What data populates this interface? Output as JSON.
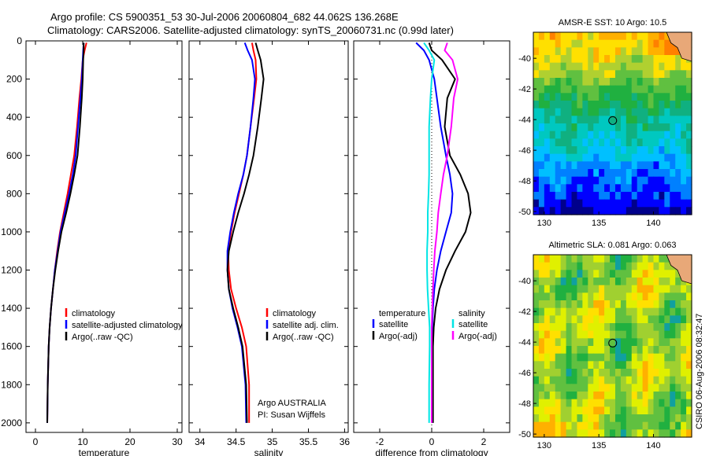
{
  "title": {
    "line1": "Argo profile: CS 5900351_53 30-Jul-2006 20060804_682 44.062S 136.268E",
    "line2": "Climatology: CARS2006. Satellite-adjusted climatology: synTS_20060731.nc (0.99d later)"
  },
  "credit": {
    "line1": "Argo AUSTRALIA",
    "line2": "PI: Susan Wijffels",
    "timestamp": "CSIRO 06-Aug-2006 08:32:47"
  },
  "colors": {
    "climatology": "#ff0000",
    "satellite": "#0000ff",
    "argo": "#000000",
    "salinity_diff": "#ff00ff",
    "salinity_sat": "#00e5e5"
  },
  "chart_data": [
    {
      "type": "line",
      "xlabel": "temperature",
      "ylabel": "",
      "xlim": [
        -2,
        31
      ],
      "ylim": [
        2050,
        0
      ],
      "xticks": [
        0,
        10,
        20,
        30
      ],
      "yticks": [
        0,
        200,
        400,
        600,
        800,
        1000,
        1200,
        1400,
        1600,
        1800,
        2000
      ],
      "legend": {
        "position": "right",
        "entries": [
          "climatology",
          "satellite-adjusted climatology",
          "Argo(..raw -QC)"
        ]
      },
      "series": [
        {
          "name": "climatology",
          "color": "#ff0000",
          "x": [
            10.8,
            10.4,
            10.0,
            9.7,
            9.3,
            8.8,
            8.2,
            7.5,
            6.8,
            6.0,
            5.2,
            4.6,
            4.1,
            3.7,
            3.3,
            3.0,
            2.8,
            2.6,
            2.5
          ],
          "y": [
            10,
            50,
            100,
            200,
            300,
            450,
            600,
            700,
            800,
            900,
            1000,
            1100,
            1200,
            1300,
            1400,
            1500,
            1600,
            1800,
            2000
          ]
        },
        {
          "name": "satellite-adjusted climatology",
          "color": "#0000ff",
          "x": [
            10.2,
            10.1,
            10.0,
            9.8,
            9.5,
            9.0,
            8.5,
            7.9,
            7.1,
            6.2,
            5.3,
            4.7,
            4.1,
            3.7,
            3.3,
            3.0,
            2.8,
            2.6,
            2.5
          ],
          "y": [
            10,
            50,
            100,
            200,
            300,
            450,
            600,
            700,
            800,
            900,
            1000,
            1100,
            1200,
            1300,
            1400,
            1500,
            1600,
            1800,
            2000
          ]
        },
        {
          "name": "Argo(..raw -QC)",
          "color": "#000000",
          "x": [
            10.2,
            10.2,
            10.1,
            10.0,
            9.8,
            9.4,
            8.9,
            8.2,
            7.4,
            6.5,
            5.5,
            4.8,
            4.2,
            3.7,
            3.3,
            3.0,
            2.8,
            2.6,
            2.5
          ],
          "y": [
            10,
            50,
            100,
            200,
            300,
            450,
            600,
            700,
            800,
            900,
            1000,
            1100,
            1200,
            1300,
            1400,
            1500,
            1600,
            1800,
            2000
          ]
        }
      ]
    },
    {
      "type": "line",
      "xlabel": "salinity",
      "ylabel": "",
      "xlim": [
        33.85,
        36.05
      ],
      "ylim": [
        2050,
        0
      ],
      "xticks": [
        34,
        34.5,
        35,
        35.5,
        36
      ],
      "yticks": [
        0,
        200,
        400,
        600,
        800,
        1000,
        1200,
        1400,
        1600,
        1800,
        2000
      ],
      "legend": {
        "position": "right",
        "entries": [
          "climatology",
          "satellite adj. clim.",
          "Argo(..raw -QC)"
        ]
      },
      "series": [
        {
          "name": "climatology",
          "color": "#ff0000",
          "x": [
            34.72,
            34.74,
            34.77,
            34.78,
            34.75,
            34.7,
            34.65,
            34.6,
            34.54,
            34.48,
            34.43,
            34.39,
            34.4,
            34.43,
            34.5,
            34.58,
            34.64,
            34.68,
            34.68
          ],
          "y": [
            10,
            50,
            100,
            200,
            300,
            450,
            600,
            700,
            800,
            900,
            1000,
            1100,
            1200,
            1300,
            1400,
            1500,
            1600,
            1800,
            2000
          ]
        },
        {
          "name": "satellite adj. clim.",
          "color": "#0000ff",
          "x": [
            34.62,
            34.66,
            34.72,
            34.76,
            34.74,
            34.7,
            34.65,
            34.6,
            34.53,
            34.47,
            34.42,
            34.38,
            34.38,
            34.4,
            34.45,
            34.52,
            34.58,
            34.63,
            34.64
          ],
          "y": [
            10,
            50,
            100,
            200,
            300,
            450,
            600,
            700,
            800,
            900,
            1000,
            1100,
            1200,
            1300,
            1400,
            1500,
            1600,
            1800,
            2000
          ]
        },
        {
          "name": "Argo(..raw -QC)",
          "color": "#000000",
          "x": [
            34.77,
            34.8,
            34.84,
            34.88,
            34.85,
            34.8,
            34.74,
            34.68,
            34.61,
            34.53,
            34.46,
            34.4,
            34.38,
            34.4,
            34.46,
            34.53,
            34.59,
            34.64,
            34.65
          ],
          "y": [
            10,
            50,
            100,
            200,
            300,
            450,
            600,
            700,
            800,
            900,
            1000,
            1100,
            1200,
            1300,
            1400,
            1500,
            1600,
            1800,
            2000
          ]
        }
      ]
    },
    {
      "type": "line",
      "xlabel": "difference from climatology",
      "ylabel": "",
      "xlim": [
        -3.0,
        3.0
      ],
      "ylim": [
        2050,
        0
      ],
      "xticks": [
        -2,
        0,
        2
      ],
      "yticks": [
        0,
        200,
        400,
        600,
        800,
        1000,
        1200,
        1400,
        1600,
        1800,
        2000
      ],
      "legend": {
        "position": "right",
        "temperature_title": "temperature",
        "salinity_title": "salinity",
        "entries": [
          "satellite",
          "Argo(-adj)",
          "satellite",
          "Argo(-adj)"
        ]
      },
      "series": [
        {
          "name": "satellite",
          "group": "temperature",
          "color": "#0000ff",
          "x": [
            -0.6,
            -0.3,
            -0.1,
            0.1,
            0.2,
            0.35,
            0.55,
            0.7,
            0.8,
            0.75,
            0.55,
            0.35,
            0.2,
            0.1,
            0.05,
            0.02,
            0.02,
            0.02,
            0.02
          ],
          "y": [
            10,
            50,
            100,
            200,
            300,
            450,
            600,
            700,
            800,
            900,
            1000,
            1100,
            1200,
            1300,
            1400,
            1500,
            1600,
            1800,
            2000
          ]
        },
        {
          "name": "Argo(-adj)",
          "group": "temperature",
          "color": "#000000",
          "x": [
            -0.1,
            0.0,
            0.4,
            0.9,
            0.6,
            0.5,
            0.7,
            1.1,
            1.4,
            1.5,
            1.3,
            0.9,
            0.55,
            0.3,
            0.15,
            0.08,
            0.05,
            0.05,
            0.05
          ],
          "y": [
            10,
            50,
            100,
            200,
            300,
            450,
            600,
            700,
            800,
            900,
            1000,
            1100,
            1200,
            1300,
            1400,
            1500,
            1600,
            1800,
            2000
          ]
        },
        {
          "name": "satellite",
          "group": "salinity",
          "color": "#00e5e5",
          "x": [
            -0.3,
            -0.1,
            0.1,
            0.0,
            -0.05,
            -0.1,
            -0.1,
            -0.1,
            -0.12,
            -0.15,
            -0.15,
            -0.18,
            -0.18,
            -0.16,
            -0.12,
            -0.08,
            -0.08,
            -0.1,
            -0.1
          ],
          "y": [
            10,
            50,
            100,
            200,
            300,
            450,
            600,
            700,
            800,
            900,
            1000,
            1100,
            1200,
            1300,
            1400,
            1500,
            1600,
            1800,
            2000
          ]
        },
        {
          "name": "Argo(-adj)",
          "group": "salinity",
          "color": "#ff00ff",
          "x": [
            0.6,
            0.5,
            0.8,
            1.0,
            0.85,
            0.75,
            0.6,
            0.45,
            0.35,
            0.25,
            0.2,
            0.12,
            0.08,
            0.05,
            0.02,
            0.0,
            0.0,
            0.0,
            0.0
          ],
          "y": [
            10,
            50,
            100,
            200,
            300,
            450,
            600,
            700,
            800,
            900,
            1000,
            1100,
            1200,
            1300,
            1400,
            1500,
            1600,
            1800,
            2000
          ]
        }
      ]
    },
    {
      "type": "heatmap",
      "title": "AMSR-E SST: 10 Argo: 10.5",
      "xlim": [
        129,
        143.5
      ],
      "ylim": [
        -50.2,
        -38.3
      ],
      "xticks": [
        130,
        135,
        140
      ],
      "yticks": [
        -40,
        -42,
        -44,
        -46,
        -48,
        -50
      ],
      "marker": {
        "lon": 136.268,
        "lat": -44.062
      },
      "palette": [
        "#00008b",
        "#0000ff",
        "#0080ff",
        "#00c0ff",
        "#00c8c0",
        "#10b080",
        "#20b040",
        "#60c040",
        "#b0d030",
        "#ffe000",
        "#ffb000",
        "#ff8000"
      ],
      "rows_lat": [
        -38.5,
        -39.5,
        -40.5,
        -41.5,
        -42.5,
        -43.5,
        -44.5,
        -45.5,
        -46.5,
        -47.5,
        -48.5,
        -49.5
      ],
      "row_levels": [
        9.5,
        8.8,
        8.2,
        7.0,
        5.8,
        5.0,
        4.2,
        3.8,
        2.6,
        2.0,
        1.2,
        0.3
      ]
    },
    {
      "type": "heatmap",
      "title": "Altimetric SLA: 0.081 Argo: 0.063",
      "xlim": [
        129,
        143.5
      ],
      "ylim": [
        -50.2,
        -38.3
      ],
      "xticks": [
        130,
        135,
        140
      ],
      "yticks": [
        -40,
        -42,
        -44,
        -46,
        -48,
        -50
      ],
      "marker": {
        "lon": 136.268,
        "lat": -44.062
      },
      "palette": [
        "#10a0a0",
        "#20b040",
        "#60c040",
        "#a0d030",
        "#e0f000",
        "#ffe000",
        "#ffb000"
      ]
    }
  ]
}
